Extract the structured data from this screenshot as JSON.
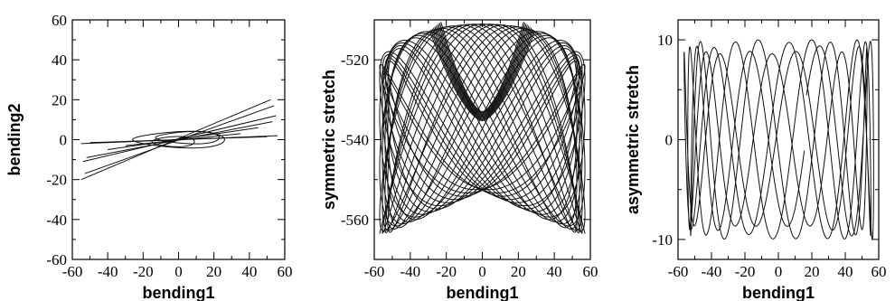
{
  "chart_data": [
    {
      "type": "line",
      "title": "",
      "xlabel": "bending1",
      "ylabel": "bending2",
      "xlim": [
        -60,
        60
      ],
      "ylim": [
        -60,
        60
      ],
      "x_ticks": [
        -60,
        -40,
        -20,
        0,
        20,
        40,
        60
      ],
      "y_ticks": [
        -60,
        -40,
        -20,
        0,
        20,
        40,
        60
      ],
      "x_minor_step": 10,
      "y_minor_step": 10,
      "grid": false,
      "series": [
        {
          "segments": [
            [
              [
                -55,
                -20
              ],
              [
                52,
                20
              ]
            ],
            [
              [
                -53,
                -17
              ],
              [
                54,
                17
              ]
            ],
            [
              [
                -54,
                -11
              ],
              [
                55,
                12
              ]
            ],
            [
              [
                -52,
                -9
              ],
              [
                53,
                9
              ]
            ],
            [
              [
                -55,
                -2
              ],
              [
                56,
                2
              ]
            ],
            [
              [
                -50,
                -1.5
              ],
              [
                50,
                1.5
              ]
            ],
            [
              [
                -40,
                -5
              ],
              [
                45,
                6
              ]
            ],
            [
              [
                -30,
                -3
              ],
              [
                35,
                3
              ]
            ]
          ],
          "loops": [
            {
              "cx": 0,
              "cy": 0,
              "rx": 26,
              "ry": 4
            },
            {
              "cx": 5,
              "cy": 1,
              "rx": 18,
              "ry": 3
            },
            {
              "cx": -3,
              "cy": -1,
              "rx": 12,
              "ry": 2.5
            }
          ]
        }
      ]
    },
    {
      "type": "line",
      "title": "",
      "xlabel": "bending1",
      "ylabel": "symmetric stretch",
      "xlim": [
        -60,
        60
      ],
      "ylim": [
        -570,
        -510
      ],
      "x_ticks": [
        -60,
        -40,
        -20,
        0,
        20,
        40,
        60
      ],
      "y_ticks": [
        -560,
        -540,
        -520
      ],
      "x_minor_step": 10,
      "y_minor_step": 10,
      "grid": false,
      "series": [
        {
          "cusps": [
            [
              -20,
              -510.5
            ],
            [
              20,
              -510.5
            ]
          ],
          "top_center": -533,
          "bottom": -564,
          "x_extent": [
            -57,
            57
          ],
          "inner_valley": -533
        }
      ]
    },
    {
      "type": "line",
      "title": "",
      "xlabel": "bending1",
      "ylabel": "asymmetric stretch",
      "xlim": [
        -60,
        60
      ],
      "ylim": [
        -12,
        12
      ],
      "x_ticks": [
        -60,
        -40,
        -20,
        0,
        20,
        40,
        60
      ],
      "y_ticks": [
        -10,
        0,
        10
      ],
      "x_minor_step": 10,
      "y_minor_step": 5,
      "grid": false,
      "series": [
        {
          "amplitude": 10,
          "x_extent": [
            -57,
            57
          ]
        }
      ]
    }
  ]
}
